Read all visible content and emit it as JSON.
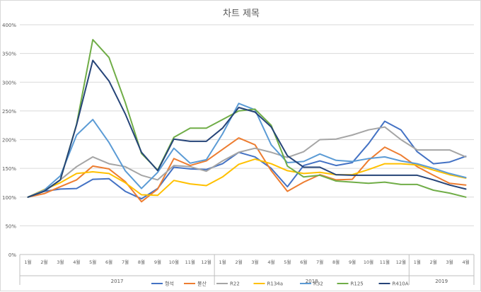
{
  "chart_data": {
    "type": "line",
    "title": "차트 제목",
    "xlabel": "",
    "ylabel": "",
    "ylim": [
      0,
      400
    ],
    "yticks": [
      "0%",
      "50%",
      "100%",
      "150%",
      "200%",
      "250%",
      "300%",
      "350%",
      "400%"
    ],
    "categories": [
      "1월",
      "2월",
      "3월",
      "4월",
      "5월",
      "6월",
      "7월",
      "8월",
      "9월",
      "10월",
      "11월",
      "12월",
      "1월",
      "2월",
      "3월",
      "4월",
      "5월",
      "6월",
      "7월",
      "8월",
      "9월",
      "10월",
      "11월",
      "12월",
      "1월",
      "2월",
      "3월",
      "4월"
    ],
    "years": [
      {
        "label": "2017",
        "start": 0,
        "count": 12
      },
      {
        "label": "2018",
        "start": 12,
        "count": 12
      },
      {
        "label": "2019",
        "start": 24,
        "count": 4
      }
    ],
    "grid": true,
    "legend": "bottom",
    "series": [
      {
        "name": "형석",
        "color": "#4472c4",
        "values": [
          100,
          110,
          114,
          115,
          131,
          132,
          110,
          97,
          115,
          152,
          149,
          148,
          158,
          178,
          170,
          150,
          118,
          155,
          163,
          155,
          160,
          193,
          232,
          217,
          179,
          158,
          161,
          171
        ]
      },
      {
        "name": "불산",
        "color": "#ed7d31",
        "values": [
          100,
          106,
          118,
          130,
          154,
          149,
          127,
          92,
          114,
          167,
          155,
          163,
          183,
          203,
          191,
          146,
          110,
          126,
          139,
          130,
          131,
          164,
          187,
          173,
          153,
          138,
          124,
          121
        ]
      },
      {
        "name": "R22",
        "color": "#a5a5a5",
        "values": [
          100,
          110,
          130,
          153,
          170,
          158,
          153,
          138,
          130,
          155,
          153,
          145,
          163,
          178,
          185,
          178,
          169,
          179,
          200,
          201,
          208,
          217,
          222,
          200,
          182,
          182,
          182,
          170
        ]
      },
      {
        "name": "R134a",
        "color": "#ffc000",
        "values": [
          100,
          113,
          125,
          141,
          144,
          141,
          125,
          104,
          103,
          129,
          123,
          120,
          135,
          157,
          166,
          158,
          146,
          141,
          143,
          139,
          139,
          148,
          158,
          158,
          156,
          147,
          139,
          133
        ]
      },
      {
        "name": "R32",
        "color": "#5b9bd5",
        "values": [
          100,
          112,
          137,
          208,
          235,
          195,
          146,
          115,
          143,
          185,
          159,
          165,
          210,
          263,
          252,
          191,
          160,
          162,
          175,
          164,
          162,
          167,
          170,
          163,
          158,
          150,
          141,
          134
        ]
      },
      {
        "name": "R125",
        "color": "#70ad47",
        "values": [
          100,
          110,
          130,
          227,
          374,
          343,
          265,
          176,
          147,
          204,
          220,
          220,
          235,
          250,
          253,
          225,
          154,
          135,
          138,
          128,
          126,
          124,
          126,
          122,
          122,
          112,
          107,
          100
        ]
      },
      {
        "name": "R410A",
        "color": "#264478",
        "values": [
          100,
          110,
          130,
          226,
          338,
          302,
          245,
          178,
          146,
          201,
          197,
          197,
          220,
          256,
          248,
          222,
          172,
          152,
          152,
          139,
          138,
          138,
          138,
          138,
          138,
          130,
          121,
          114
        ]
      }
    ]
  }
}
